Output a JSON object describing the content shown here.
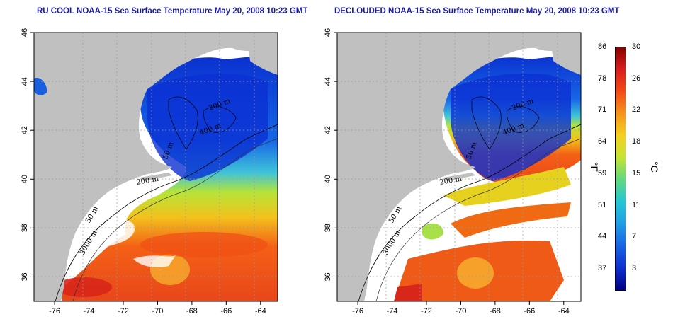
{
  "panels": [
    {
      "title": "RU COOL NOAA-15 Sea Surface Temperature May 20, 2008 10:23 GMT",
      "variant": "raw",
      "contour_labels": [
        "200 m",
        "400 m",
        "50 m",
        "50 m",
        "200 m",
        "3000 m"
      ]
    },
    {
      "title": "DECLOUDED NOAA-15 Sea Surface Temperature May 20, 2008 10:23 GMT",
      "variant": "declouded",
      "contour_labels": [
        "200 m",
        "400 m",
        "50 m",
        "50 m",
        "200 m",
        "3000 m"
      ]
    }
  ],
  "axes": {
    "lon_ticks": [
      "-76",
      "-74",
      "-72",
      "-70",
      "-68",
      "-66",
      "-64"
    ],
    "lat_ticks": [
      "46",
      "44",
      "42",
      "40",
      "38",
      "36"
    ],
    "lon_range": [
      -77.2,
      -63.0
    ],
    "lat_range": [
      35.0,
      46.0
    ]
  },
  "colorbar": {
    "fahrenheit_labels": [
      "86",
      "78",
      "71",
      "64",
      "59",
      "51",
      "44",
      "37"
    ],
    "celsius_labels": [
      "30",
      "26",
      "22",
      "18",
      "15",
      "11",
      "7",
      "3"
    ],
    "fahrenheit_unit": "°F",
    "celsius_unit": "°C",
    "colors": [
      "#8b0000",
      "#d81e1e",
      "#f24b16",
      "#f6951b",
      "#f5d11f",
      "#c4e434",
      "#5fd882",
      "#24c7d4",
      "#1f9ee8",
      "#1764e2",
      "#0e2fd0",
      "#000080"
    ]
  },
  "colors": {
    "land": "#c0c0c0",
    "cloud": "#ffffff",
    "grid": "#9a9a9a",
    "title": "#1a1aa8"
  }
}
